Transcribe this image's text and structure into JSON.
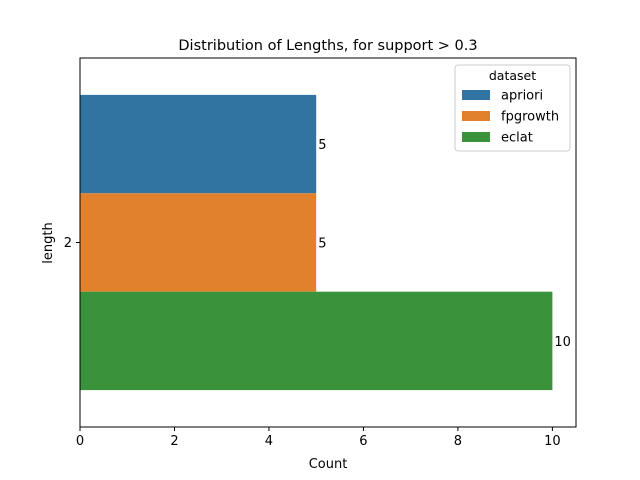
{
  "chart_data": {
    "type": "bar",
    "orientation": "horizontal",
    "title": "Distribution of Lengths, for support > 0.3",
    "xlabel": "Count",
    "ylabel": "length",
    "categories": [
      "2"
    ],
    "xlim": [
      0,
      10.5
    ],
    "xticks": [
      0,
      2,
      4,
      6,
      8,
      10
    ],
    "grid": false,
    "legend": {
      "title": "dataset",
      "placement": "top-right"
    },
    "series": [
      {
        "name": "apriori",
        "values": [
          5
        ],
        "color": "#3274a1",
        "label": "5"
      },
      {
        "name": "fpgrowth",
        "values": [
          5
        ],
        "color": "#e1812c",
        "label": "5"
      },
      {
        "name": "eclat",
        "values": [
          10
        ],
        "color": "#3a923a",
        "label": "10"
      }
    ]
  }
}
